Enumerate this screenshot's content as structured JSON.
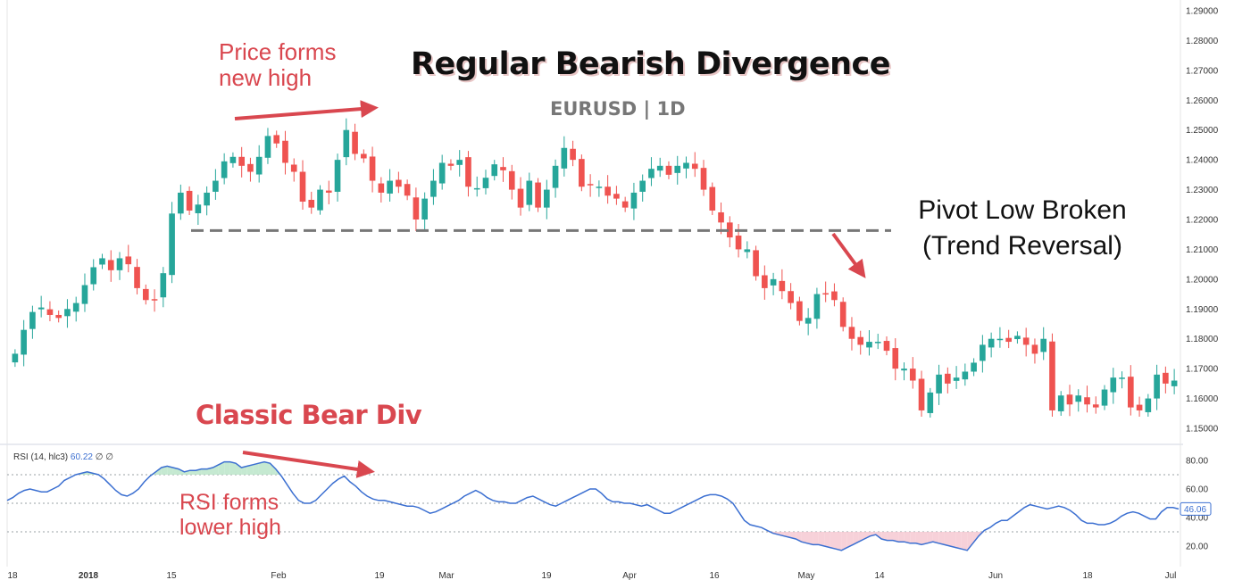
{
  "title": "Regular Bearish Divergence",
  "subtitle": "EURUSD | 1D",
  "annotations": {
    "price_high": [
      "Price forms",
      "new high"
    ],
    "pivot": [
      "Pivot Low Broken",
      "(Trend Reversal)"
    ],
    "bear_div": "Classic Bear Div",
    "rsi_high": [
      "RSI forms",
      "lower high"
    ]
  },
  "rsi_legend": {
    "label": "RSI (14, hlc3)",
    "value": "60.22",
    "extra": "∅ ∅"
  },
  "colors": {
    "up": "#26a69a",
    "down": "#ef5350",
    "rsi_line": "#3b6fd1",
    "annotation": "#d9474f",
    "pivot_line": "#777777"
  },
  "chart_data": [
    {
      "type": "candlestick",
      "symbol": "EURUSD",
      "timeframe": "1D",
      "y_ticks": [
        "1.15000",
        "1.16000",
        "1.17000",
        "1.18000",
        "1.19000",
        "1.20000",
        "1.21000",
        "1.22000",
        "1.23000",
        "1.24000",
        "1.25000",
        "1.26000",
        "1.27000",
        "1.28000",
        "1.29000"
      ],
      "ylim": [
        1.145,
        1.29
      ],
      "x_ticks": [
        "18",
        "2018",
        "15",
        "Feb",
        "19",
        "Mar",
        "19",
        "Apr",
        "16",
        "May",
        "14",
        "Jun",
        "18",
        "Jul"
      ],
      "pivot_level": 1.2163,
      "closes": [
        1.175,
        1.183,
        1.189,
        1.1905,
        1.188,
        1.187,
        1.19,
        1.192,
        1.198,
        1.204,
        1.207,
        1.203,
        1.207,
        1.205,
        1.197,
        1.193,
        1.193,
        1.202,
        1.222,
        1.229,
        1.223,
        1.225,
        1.229,
        1.233,
        1.2395,
        1.241,
        1.238,
        1.236,
        1.241,
        1.248,
        1.2455,
        1.239,
        1.236,
        1.226,
        1.224,
        1.23,
        1.229,
        1.24,
        1.25,
        1.242,
        1.2405,
        1.233,
        1.229,
        1.233,
        1.231,
        1.228,
        1.22,
        1.227,
        1.233,
        1.239,
        1.238,
        1.24,
        1.231,
        1.2305,
        1.234,
        1.2385,
        1.2365,
        1.23,
        1.224,
        1.233,
        1.224,
        1.23,
        1.238,
        1.244,
        1.24,
        1.231,
        1.2315,
        1.231,
        1.228,
        1.227,
        1.224,
        1.229,
        1.233,
        1.237,
        1.238,
        1.235,
        1.238,
        1.239,
        1.237,
        1.23,
        1.223,
        1.219,
        1.214,
        1.21,
        1.21,
        1.201,
        1.197,
        1.2,
        1.196,
        1.192,
        1.186,
        1.187,
        1.195,
        1.195,
        1.193,
        1.184,
        1.18,
        1.178,
        1.179,
        1.179,
        1.176,
        1.17,
        1.17,
        1.166,
        1.156,
        1.162,
        1.168,
        1.165,
        1.167,
        1.169,
        1.172,
        1.178,
        1.18,
        1.18,
        1.179,
        1.181,
        1.178,
        1.175,
        1.18,
        1.156,
        1.161,
        1.158,
        1.161,
        1.158,
        1.157,
        1.163,
        1.167,
        1.167,
        1.157,
        1.156,
        1.16,
        1.168,
        1.165,
        1.166
      ]
    },
    {
      "type": "line",
      "name": "RSI (14, hlc3)",
      "ylim": [
        0,
        100
      ],
      "levels": [
        70,
        30
      ],
      "y_ticks": [
        "80.00",
        "60.00",
        "40.00",
        "20.00"
      ],
      "last_value": "46.06",
      "values": [
        52,
        54,
        57,
        59,
        60,
        59,
        58,
        58,
        60,
        62,
        66,
        68,
        70,
        71,
        72,
        71,
        70,
        67,
        63,
        59,
        56,
        55,
        57,
        60,
        65,
        69,
        72,
        75,
        76,
        75,
        74,
        72,
        73,
        73,
        74,
        74,
        75,
        77,
        79,
        79,
        78,
        75,
        76,
        77,
        78,
        79,
        78,
        74,
        69,
        63,
        57,
        52,
        50,
        50,
        52,
        56,
        60,
        64,
        67,
        69,
        65,
        62,
        58,
        55,
        53,
        52,
        52,
        51,
        50,
        49,
        48,
        48,
        47,
        45,
        43,
        44,
        46,
        48,
        50,
        52,
        55,
        57,
        59,
        57,
        54,
        52,
        51,
        51,
        50,
        50,
        52,
        54,
        55,
        53,
        51,
        49,
        48,
        50,
        52,
        54,
        56,
        58,
        60,
        60,
        57,
        53,
        51,
        51,
        50,
        50,
        49,
        48,
        49,
        47,
        45,
        43,
        43,
        45,
        47,
        49,
        51,
        53,
        55,
        56,
        56,
        55,
        53,
        50,
        44,
        38,
        35,
        34,
        33,
        31,
        29,
        28,
        27,
        26,
        25,
        23,
        22,
        21,
        21,
        20,
        19,
        18,
        17,
        19,
        21,
        23,
        25,
        27,
        28,
        25,
        24,
        24,
        23,
        23,
        22,
        22,
        21,
        22,
        23,
        22,
        21,
        20,
        19,
        18,
        17,
        22,
        27,
        31,
        33,
        36,
        38,
        38,
        41,
        44,
        47,
        49,
        48,
        47,
        46,
        47,
        48,
        47,
        45,
        42,
        38,
        36,
        36,
        35,
        35,
        36,
        38,
        41,
        43,
        44,
        43,
        41,
        39,
        39,
        44,
        47,
        47,
        46
      ]
    }
  ]
}
